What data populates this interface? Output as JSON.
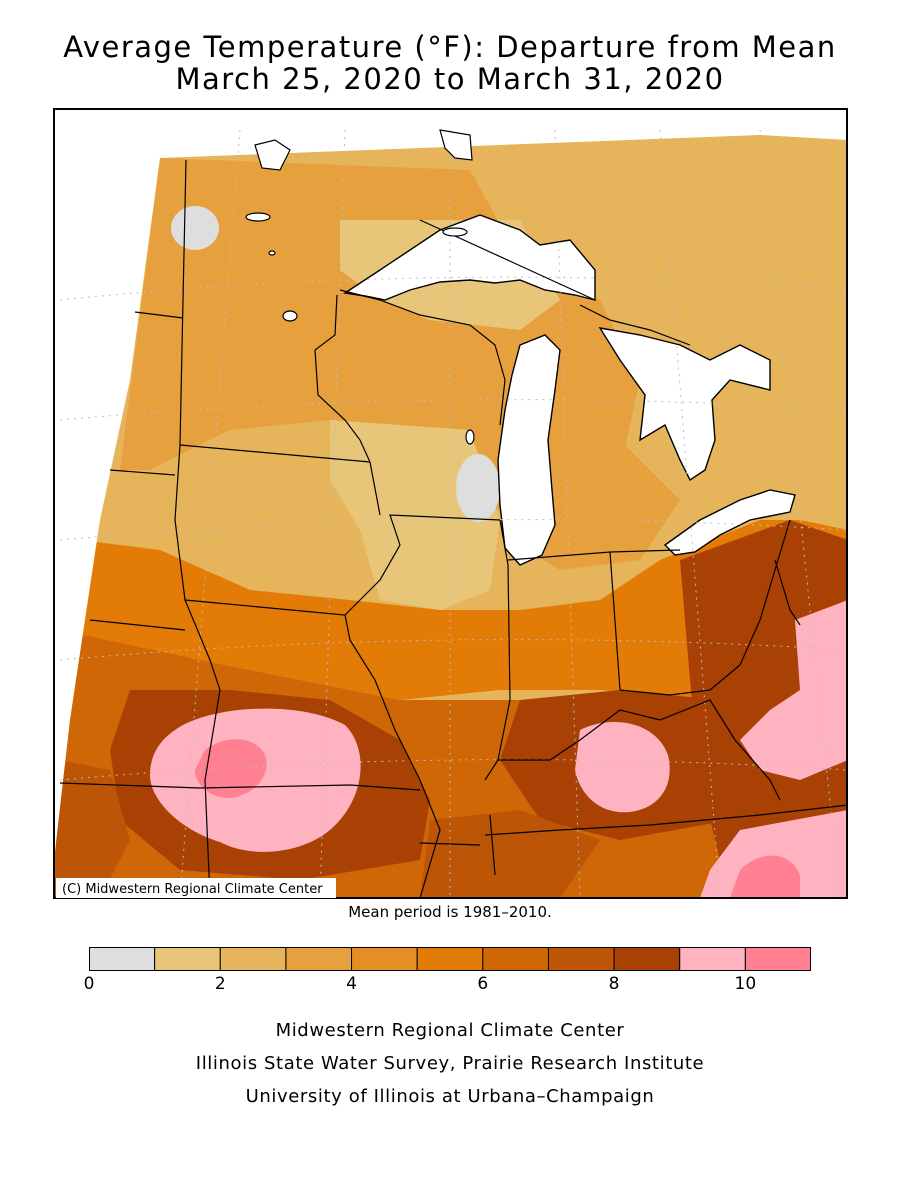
{
  "title": {
    "line1": "Average Temperature (°F): Departure from Mean",
    "line2": "March 25, 2020 to March 31, 2020"
  },
  "map": {
    "copyright": "(C) Midwestern Regional Climate Center"
  },
  "mean_period": "Mean period is 1981–2010.",
  "legend": {
    "bins": [
      {
        "from": 0,
        "to": 1,
        "color": "#dedede"
      },
      {
        "from": 1,
        "to": 2,
        "color": "#e8c679"
      },
      {
        "from": 2,
        "to": 3,
        "color": "#e6b45a"
      },
      {
        "from": 3,
        "to": 4,
        "color": "#e6a13e"
      },
      {
        "from": 4,
        "to": 5,
        "color": "#e58e24"
      },
      {
        "from": 5,
        "to": 6,
        "color": "#e37b07"
      },
      {
        "from": 6,
        "to": 7,
        "color": "#d06707"
      },
      {
        "from": 7,
        "to": 8,
        "color": "#bd5506"
      },
      {
        "from": 8,
        "to": 9,
        "color": "#a94105"
      },
      {
        "from": 9,
        "to": 10,
        "color": "#ffb3c1"
      },
      {
        "from": 10,
        "to": 11,
        "color": "#ff8090"
      }
    ],
    "ticks": [
      "0",
      "2",
      "4",
      "6",
      "8",
      "10"
    ]
  },
  "credits": {
    "line1": "Midwestern Regional Climate Center",
    "line2": "Illinois State Water Survey, Prairie Research Institute",
    "line3": "University of Illinois at Urbana–Champaign"
  }
}
